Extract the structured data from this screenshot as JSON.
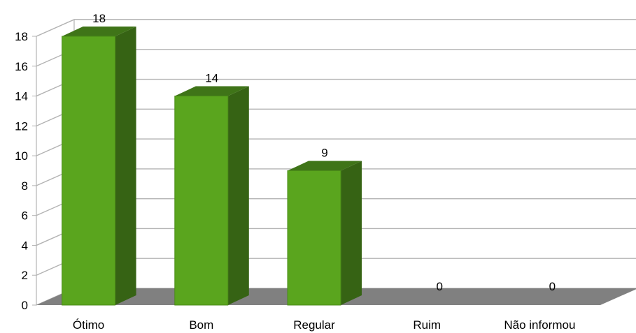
{
  "chart_data": {
    "type": "bar",
    "categories": [
      "Ótimo",
      "Bom",
      "Regular",
      "Ruim",
      "Não informou"
    ],
    "values": [
      18,
      14,
      9,
      0,
      0
    ],
    "ylim": [
      0,
      18
    ],
    "yticks": [
      0,
      2,
      4,
      6,
      8,
      10,
      12,
      14,
      16,
      18
    ],
    "grid": true,
    "legend": "none",
    "three_d": true,
    "colors": {
      "bar_front": "#5aa51e",
      "bar_side": "#366314",
      "bar_top": "#3f7418",
      "floor": "#808080",
      "gridline": "#b3b3b3",
      "axis": "#000000"
    }
  }
}
